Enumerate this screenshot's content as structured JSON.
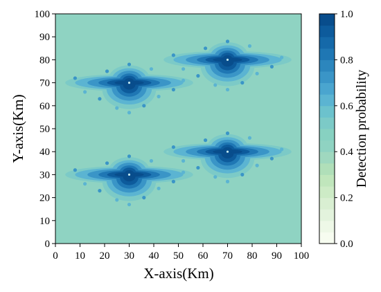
{
  "chart_data": {
    "type": "heatmap",
    "title": "",
    "xlabel": "X-axis(Km)",
    "ylabel": "Y-axis(Km)",
    "xlim": [
      0,
      100
    ],
    "ylim": [
      0,
      100
    ],
    "x_ticks": [
      "0",
      "10",
      "20",
      "30",
      "40",
      "50",
      "60",
      "70",
      "80",
      "90",
      "100"
    ],
    "y_ticks": [
      "0",
      "10",
      "20",
      "30",
      "40",
      "50",
      "60",
      "70",
      "80",
      "90",
      "100"
    ],
    "background_probability": 0.43,
    "hotspots": [
      {
        "x": 30,
        "y": 70,
        "peak": 1.0
      },
      {
        "x": 70,
        "y": 80,
        "peak": 1.0
      },
      {
        "x": 30,
        "y": 30,
        "peak": 1.0
      },
      {
        "x": 70,
        "y": 40,
        "peak": 1.0
      }
    ],
    "colorbar": {
      "label": "Detection probability",
      "range": [
        0.0,
        1.0
      ],
      "tick_labels": [
        "0.0",
        "0.2",
        "0.4",
        "0.6",
        "0.8",
        "1.0"
      ],
      "levels": [
        0.0,
        0.05,
        0.1,
        0.15,
        0.2,
        0.25,
        0.3,
        0.35,
        0.4,
        0.45,
        0.5,
        0.55,
        0.6,
        0.65,
        0.7,
        0.75,
        0.8,
        0.85,
        0.9,
        0.95,
        1.0
      ],
      "colors": [
        "#f7fcf0",
        "#eef8e7",
        "#e3f3dd",
        "#d9efd2",
        "#cdebc6",
        "#c0e6bc",
        "#b0dfb9",
        "#9fd8bf",
        "#8fd3c2",
        "#87d1c1",
        "#7ccac7",
        "#6cc2cd",
        "#5bb4d2",
        "#4aa5cf",
        "#3a95c7",
        "#2c86bd",
        "#1f77b4",
        "#1569a9",
        "#0d5b9c",
        "#084d8c",
        "#08447d"
      ]
    }
  }
}
